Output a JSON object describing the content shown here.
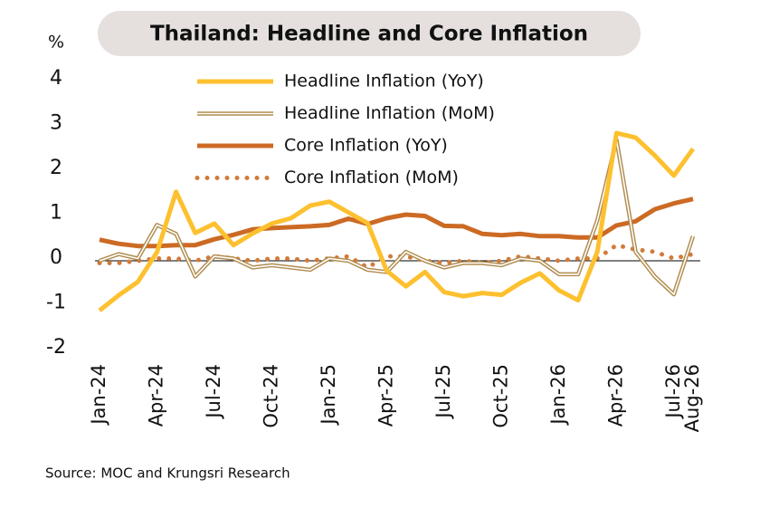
{
  "chart_data": {
    "type": "line",
    "title": "Thailand: Headline and Core Inflation",
    "y_label": "%",
    "source": "Source: MOC and Krungsri Research",
    "categories": [
      "Jan-24",
      null,
      null,
      "Apr-24",
      null,
      null,
      "Jul-24",
      null,
      null,
      "Oct-24",
      null,
      null,
      "Jan-25",
      null,
      null,
      "Apr-25",
      null,
      null,
      "Jul-25",
      null,
      null,
      "Oct-25",
      null,
      null,
      "Jan-26",
      null,
      null,
      "Apr-26",
      null,
      null,
      "Jul-26",
      "Aug-26"
    ],
    "series": [
      {
        "name": "Headline Inflation (YoY)",
        "color": "#fdc02f",
        "style": "solid",
        "values": [
          -1.11,
          -0.77,
          -0.47,
          0.19,
          1.54,
          0.62,
          0.83,
          0.35,
          0.61,
          0.83,
          0.95,
          1.23,
          1.32,
          1.08,
          0.84,
          -0.22,
          -0.57,
          -0.25,
          -0.7,
          -0.79,
          -0.72,
          -0.76,
          -0.49,
          -0.28,
          -0.66,
          -0.88,
          0.2,
          2.85,
          2.75,
          2.35,
          1.9,
          2.5
        ]
      },
      {
        "name": "Headline Inflation (MoM)",
        "color": "#b08c4e",
        "style": "double",
        "values": [
          0,
          0.15,
          0.05,
          0.8,
          0.6,
          -0.35,
          0.1,
          0.05,
          -0.15,
          -0.1,
          -0.15,
          -0.2,
          0.05,
          0,
          -0.2,
          -0.25,
          0.2,
          0,
          -0.15,
          -0.05,
          -0.05,
          -0.1,
          0.05,
          0,
          -0.3,
          -0.3,
          0.9,
          2.7,
          0.2,
          -0.35,
          -0.75,
          0.55
        ]
      },
      {
        "name": "Core Inflation (YoY)",
        "color": "#cc6a24",
        "style": "solid",
        "values": [
          0.47,
          0.38,
          0.33,
          0.33,
          0.35,
          0.35,
          0.48,
          0.58,
          0.7,
          0.73,
          0.75,
          0.77,
          0.8,
          0.94,
          0.82,
          0.95,
          1.03,
          1,
          0.78,
          0.77,
          0.6,
          0.57,
          0.6,
          0.55,
          0.55,
          0.52,
          0.52,
          0.79,
          0.88,
          1.15,
          1.28,
          1.38
        ]
      },
      {
        "name": "Core Inflation (MoM)",
        "color": "#d27a3a",
        "style": "dotted",
        "values": [
          -0.05,
          -0.05,
          0,
          0.05,
          0.05,
          0,
          0.1,
          0.05,
          0,
          0.05,
          0.05,
          0,
          0.05,
          0.1,
          -0.15,
          0.1,
          0.1,
          0,
          -0.05,
          0,
          -0.05,
          0,
          0.1,
          0.05,
          0,
          0.05,
          0.05,
          0.35,
          0.25,
          0.2,
          0.05,
          0.15
        ]
      }
    ],
    "ylim": [
      -2,
      4
    ],
    "yticks": [
      -2,
      -1,
      0,
      1,
      2,
      3,
      4
    ],
    "zero_line": true
  }
}
